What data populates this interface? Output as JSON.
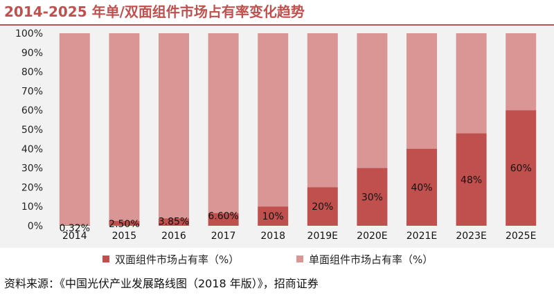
{
  "title": "2014-2025 年单/双面组件市场占有率变化趋势",
  "source": "资料来源：《中国光伏产业发展路线图（2018 年版）》，招商证券",
  "colors": {
    "double": "#c0504d",
    "single": "#da9694",
    "title": "#c0504d",
    "plot_bg": "#f2f2f2"
  },
  "chart_data": {
    "type": "bar",
    "stacked": true,
    "categories": [
      "2014",
      "2015",
      "2016",
      "2017",
      "2018",
      "2019E",
      "2020E",
      "2021E",
      "2023E",
      "2025E"
    ],
    "series": [
      {
        "name": "双面组件市场占有率（%）",
        "values": [
          0.32,
          2.5,
          3.85,
          6.6,
          10,
          20,
          30,
          40,
          48,
          60
        ],
        "labels": [
          "0.32%",
          "2.50%",
          "3.85%",
          "6.60%",
          "10%",
          "20%",
          "30%",
          "40%",
          "48%",
          "60%"
        ]
      },
      {
        "name": "单面组件市场占有率（%）",
        "values": [
          99.68,
          97.5,
          96.15,
          93.4,
          90,
          80,
          70,
          60,
          52,
          40
        ]
      }
    ],
    "yticks": [
      "0%",
      "10%",
      "20%",
      "30%",
      "40%",
      "50%",
      "60%",
      "70%",
      "80%",
      "90%",
      "100%"
    ],
    "ylim": [
      0,
      100
    ],
    "legend_position": "bottom",
    "grid": false
  }
}
